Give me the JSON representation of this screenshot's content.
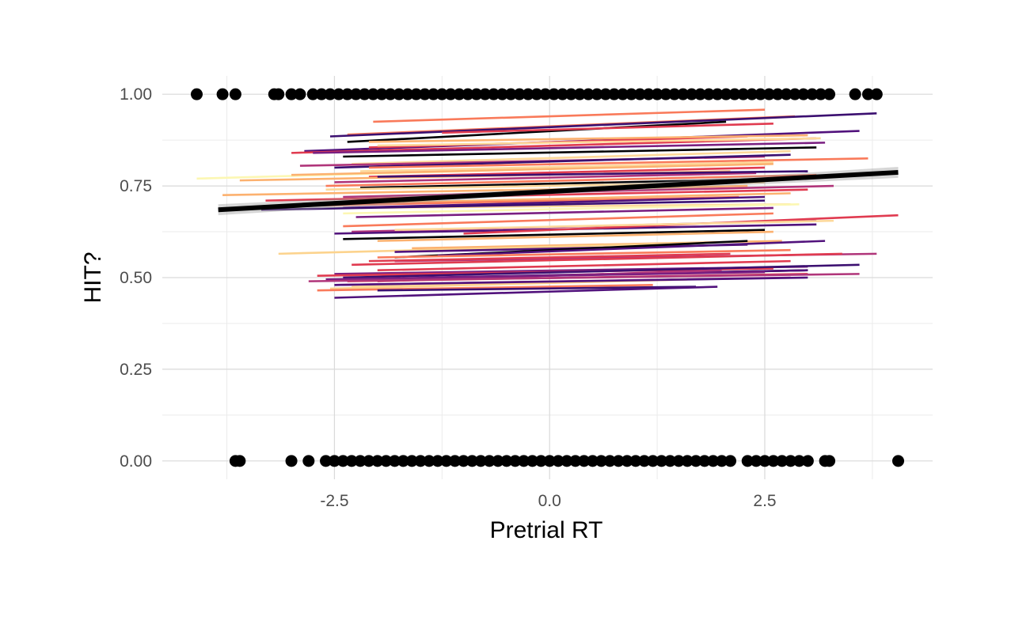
{
  "chart_data": {
    "type": "scatter",
    "title": "",
    "xlabel": "Pretrial RT",
    "ylabel": "HIT?",
    "xlim": [
      -4.5,
      4.45
    ],
    "ylim": [
      -0.05,
      1.05
    ],
    "x_ticks": [
      -2.5,
      0.0,
      2.5
    ],
    "x_tick_labels": [
      "-2.5",
      "0.0",
      "2.5"
    ],
    "y_ticks": [
      0.0,
      0.25,
      0.5,
      0.75,
      1.0
    ],
    "y_tick_labels": [
      "0.00",
      "0.25",
      "0.50",
      "0.75",
      "1.00"
    ],
    "grid": true,
    "legend": "none",
    "points_y1": [
      -4.1,
      -3.8,
      -3.65,
      -3.2,
      -3.15,
      -3.0,
      -2.9,
      -2.75,
      -2.65,
      -2.55,
      -2.45,
      -2.35,
      -2.25,
      -2.15,
      -2.05,
      -1.95,
      -1.85,
      -1.75,
      -1.65,
      -1.55,
      -1.45,
      -1.35,
      -1.25,
      -1.15,
      -1.05,
      -0.95,
      -0.85,
      -0.75,
      -0.65,
      -0.55,
      -0.45,
      -0.35,
      -0.25,
      -0.15,
      -0.05,
      0.05,
      0.15,
      0.25,
      0.35,
      0.45,
      0.55,
      0.65,
      0.75,
      0.85,
      0.95,
      1.05,
      1.15,
      1.25,
      1.35,
      1.45,
      1.55,
      1.65,
      1.75,
      1.85,
      1.95,
      2.05,
      2.15,
      2.25,
      2.35,
      2.45,
      2.55,
      2.65,
      2.75,
      2.85,
      2.95,
      3.05,
      3.15,
      3.25,
      3.55,
      3.7,
      3.8
    ],
    "points_y0": [
      -3.65,
      -3.6,
      -3.0,
      -2.8,
      -2.6,
      -2.5,
      -2.4,
      -2.3,
      -2.2,
      -2.1,
      -2.0,
      -1.9,
      -1.8,
      -1.7,
      -1.6,
      -1.5,
      -1.4,
      -1.3,
      -1.2,
      -1.1,
      -1.0,
      -0.9,
      -0.8,
      -0.7,
      -0.6,
      -0.5,
      -0.4,
      -0.3,
      -0.2,
      -0.1,
      0.0,
      0.1,
      0.2,
      0.3,
      0.4,
      0.5,
      0.6,
      0.7,
      0.8,
      0.9,
      1.0,
      1.1,
      1.2,
      1.3,
      1.4,
      1.5,
      1.6,
      1.7,
      1.8,
      1.9,
      2.0,
      2.1,
      2.3,
      2.4,
      2.5,
      2.6,
      2.7,
      2.8,
      2.9,
      3.0,
      3.2,
      3.25,
      4.05
    ],
    "overall_fit": {
      "x": [
        -3.85,
        4.05
      ],
      "y": [
        0.685,
        0.787
      ],
      "ci": 0.015,
      "color": "#000000"
    },
    "subject_fits": [
      {
        "x": [
          -2.05,
          2.5
        ],
        "y": [
          0.925,
          0.958
        ],
        "color": "#f97a5a"
      },
      {
        "x": [
          -2.35,
          2.85
        ],
        "y": [
          0.89,
          0.94
        ],
        "color": "#f97a5a"
      },
      {
        "x": [
          -2.55,
          3.8
        ],
        "y": [
          0.885,
          0.948
        ],
        "color": "#3b0f70"
      },
      {
        "x": [
          -2.35,
          2.05
        ],
        "y": [
          0.87,
          0.925
        ],
        "color": "#000004"
      },
      {
        "x": [
          -1.25,
          2.6
        ],
        "y": [
          0.895,
          0.92
        ],
        "color": "#e03b50"
      },
      {
        "x": [
          -2.85,
          3.6
        ],
        "y": [
          0.845,
          0.9
        ],
        "color": "#51127c"
      },
      {
        "x": [
          -3.0,
          3.1
        ],
        "y": [
          0.84,
          0.88
        ],
        "color": "#e03b50"
      },
      {
        "x": [
          -2.1,
          2.3
        ],
        "y": [
          0.855,
          0.885
        ],
        "color": "#e03b50"
      },
      {
        "x": [
          -2.1,
          3.0
        ],
        "y": [
          0.87,
          0.888
        ],
        "color": "#fcb16f"
      },
      {
        "x": [
          -2.0,
          3.15
        ],
        "y": [
          0.86,
          0.88
        ],
        "color": "#fdd89a"
      },
      {
        "x": [
          -2.75,
          3.2
        ],
        "y": [
          0.84,
          0.868
        ],
        "color": "#7a1f81"
      },
      {
        "x": [
          -2.4,
          3.1
        ],
        "y": [
          0.83,
          0.855
        ],
        "color": "#000004"
      },
      {
        "x": [
          -2.3,
          2.8
        ],
        "y": [
          0.81,
          0.845
        ],
        "color": "#fdd89a"
      },
      {
        "x": [
          -2.9,
          2.5
        ],
        "y": [
          0.805,
          0.83
        ],
        "color": "#b0357a"
      },
      {
        "x": [
          -2.5,
          2.8
        ],
        "y": [
          0.8,
          0.835
        ],
        "color": "#3b0f70"
      },
      {
        "x": [
          -2.1,
          3.7
        ],
        "y": [
          0.8,
          0.825
        ],
        "color": "#f97a5a"
      },
      {
        "x": [
          -4.1,
          2.0
        ],
        "y": [
          0.77,
          0.81
        ],
        "color": "#fcf7b3"
      },
      {
        "x": [
          -2.2,
          2.6
        ],
        "y": [
          0.79,
          0.815
        ],
        "color": "#fdd89a"
      },
      {
        "x": [
          -3.0,
          2.6
        ],
        "y": [
          0.78,
          0.81
        ],
        "color": "#fcb16f"
      },
      {
        "x": [
          -2.1,
          2.5
        ],
        "y": [
          0.775,
          0.8
        ],
        "color": "#e03b50"
      },
      {
        "x": [
          -3.6,
          2.1
        ],
        "y": [
          0.765,
          0.79
        ],
        "color": "#fcb16f"
      },
      {
        "x": [
          -2.5,
          2.4
        ],
        "y": [
          0.76,
          0.785
        ],
        "color": "#b0357a"
      },
      {
        "x": [
          -2.0,
          3.0
        ],
        "y": [
          0.775,
          0.79
        ],
        "color": "#3b0f70"
      },
      {
        "x": [
          -2.6,
          3.1
        ],
        "y": [
          0.75,
          0.78
        ],
        "color": "#f97a5a"
      },
      {
        "x": [
          -2.2,
          2.8
        ],
        "y": [
          0.745,
          0.77
        ],
        "color": "#000004"
      },
      {
        "x": [
          -2.6,
          2.5
        ],
        "y": [
          0.74,
          0.76
        ],
        "color": "#fdd89a"
      },
      {
        "x": [
          -3.8,
          2.3
        ],
        "y": [
          0.725,
          0.75
        ],
        "color": "#fcb16f"
      },
      {
        "x": [
          -2.4,
          3.3
        ],
        "y": [
          0.72,
          0.75
        ],
        "color": "#b0357a"
      },
      {
        "x": [
          -3.3,
          3.0
        ],
        "y": [
          0.71,
          0.74
        ],
        "color": "#e03b50"
      },
      {
        "x": [
          -2.6,
          2.8
        ],
        "y": [
          0.7,
          0.73
        ],
        "color": "#fcb16f"
      },
      {
        "x": [
          -3.0,
          2.2
        ],
        "y": [
          0.695,
          0.72
        ],
        "color": "#f97a5a"
      },
      {
        "x": [
          -2.4,
          2.5
        ],
        "y": [
          0.69,
          0.72
        ],
        "color": "#51127c"
      },
      {
        "x": [
          -2.2,
          2.8
        ],
        "y": [
          0.69,
          0.7
        ],
        "color": "#fdd89a"
      },
      {
        "x": [
          -3.35,
          2.5
        ],
        "y": [
          0.685,
          0.71
        ],
        "color": "#3b0f70"
      },
      {
        "x": [
          -2.4,
          2.9
        ],
        "y": [
          0.675,
          0.7
        ],
        "color": "#fcf7b3"
      },
      {
        "x": [
          -2.25,
          2.6
        ],
        "y": [
          0.665,
          0.69
        ],
        "color": "#7a1f81"
      },
      {
        "x": [
          -2.4,
          2.6
        ],
        "y": [
          0.64,
          0.675
        ],
        "color": "#f97a5a"
      },
      {
        "x": [
          -2.3,
          3.1
        ],
        "y": [
          0.625,
          0.655
        ],
        "color": "#b0357a"
      },
      {
        "x": [
          -2.5,
          3.1
        ],
        "y": [
          0.62,
          0.645
        ],
        "color": "#51127c"
      },
      {
        "x": [
          -2.4,
          2.5
        ],
        "y": [
          0.605,
          0.63
        ],
        "color": "#000004"
      },
      {
        "x": [
          -1.0,
          4.05
        ],
        "y": [
          0.62,
          0.67
        ],
        "color": "#e03b50"
      },
      {
        "x": [
          -1.8,
          3.3
        ],
        "y": [
          0.63,
          0.655
        ],
        "color": "#fdd89a"
      },
      {
        "x": [
          -2.0,
          2.6
        ],
        "y": [
          0.6,
          0.625
        ],
        "color": "#fcb16f"
      },
      {
        "x": [
          -1.6,
          2.7
        ],
        "y": [
          0.58,
          0.6
        ],
        "color": "#fcb16f"
      },
      {
        "x": [
          -3.15,
          1.8
        ],
        "y": [
          0.565,
          0.595
        ],
        "color": "#fcd38d"
      },
      {
        "x": [
          -1.8,
          2.3
        ],
        "y": [
          0.57,
          0.59
        ],
        "color": "#51127c"
      },
      {
        "x": [
          -1.8,
          2.3
        ],
        "y": [
          0.555,
          0.6
        ],
        "color": "#000004"
      },
      {
        "x": [
          -1.3,
          3.2
        ],
        "y": [
          0.56,
          0.6
        ],
        "color": "#51127c"
      },
      {
        "x": [
          -2.0,
          2.8
        ],
        "y": [
          0.555,
          0.575
        ],
        "color": "#f97a5a"
      },
      {
        "x": [
          -1.8,
          3.8
        ],
        "y": [
          0.545,
          0.565
        ],
        "color": "#b0357a"
      },
      {
        "x": [
          -2.1,
          2.1
        ],
        "y": [
          0.545,
          0.565
        ],
        "color": "#e03b50"
      },
      {
        "x": [
          -2.3,
          3.4
        ],
        "y": [
          0.535,
          0.565
        ],
        "color": "#e03b50"
      },
      {
        "x": [
          -2.0,
          2.8
        ],
        "y": [
          0.52,
          0.545
        ],
        "color": "#e03b50"
      },
      {
        "x": [
          -2.5,
          3.0
        ],
        "y": [
          0.51,
          0.53
        ],
        "color": "#7a1f81"
      },
      {
        "x": [
          -2.7,
          2.6
        ],
        "y": [
          0.505,
          0.525
        ],
        "color": "#e03b50"
      },
      {
        "x": [
          -2.4,
          3.6
        ],
        "y": [
          0.5,
          0.535
        ],
        "color": "#3b0f70"
      },
      {
        "x": [
          -2.2,
          3.0
        ],
        "y": [
          0.495,
          0.52
        ],
        "color": "#000004"
      },
      {
        "x": [
          -1.5,
          3.0
        ],
        "y": [
          0.5,
          0.52
        ],
        "color": "#51127c"
      },
      {
        "x": [
          -2.0,
          2.0
        ],
        "y": [
          0.49,
          0.52
        ],
        "color": "#b0357a"
      },
      {
        "x": [
          -2.6,
          2.5
        ],
        "y": [
          0.495,
          0.515
        ],
        "color": "#7a1f81"
      },
      {
        "x": [
          -2.35,
          3.0
        ],
        "y": [
          0.49,
          0.51
        ],
        "color": "#e03b50"
      },
      {
        "x": [
          -2.8,
          3.6
        ],
        "y": [
          0.49,
          0.51
        ],
        "color": "#b0357a"
      },
      {
        "x": [
          -2.5,
          2.8
        ],
        "y": [
          0.48,
          0.5
        ],
        "color": "#b0357a"
      },
      {
        "x": [
          -2.3,
          1.6
        ],
        "y": [
          0.475,
          0.495
        ],
        "color": "#fdd89a"
      },
      {
        "x": [
          -2.55,
          1.6
        ],
        "y": [
          0.47,
          0.495
        ],
        "color": "#fcd38d"
      },
      {
        "x": [
          -2.7,
          1.2
        ],
        "y": [
          0.465,
          0.48
        ],
        "color": "#f97a5a"
      },
      {
        "x": [
          -2.5,
          3.0
        ],
        "y": [
          0.48,
          0.5
        ],
        "color": "#51127c"
      },
      {
        "x": [
          -2.0,
          1.7
        ],
        "y": [
          0.465,
          0.475
        ],
        "color": "#3b0f70"
      },
      {
        "x": [
          -2.5,
          1.95
        ],
        "y": [
          0.445,
          0.475
        ],
        "color": "#51127c"
      }
    ]
  }
}
